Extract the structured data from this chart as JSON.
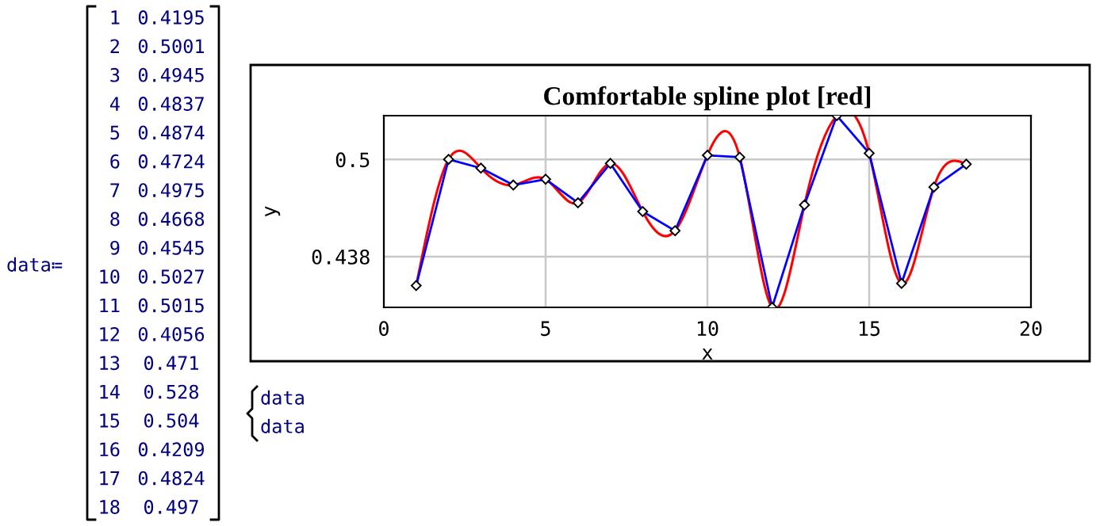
{
  "chart_data": {
    "type": "line",
    "title": "Comfortable spline plot [red]",
    "xlabel": "x",
    "ylabel": "y",
    "x": [
      1,
      2,
      3,
      4,
      5,
      6,
      7,
      8,
      9,
      10,
      11,
      12,
      13,
      14,
      15,
      16,
      17,
      18
    ],
    "series": [
      {
        "color": "#0000ff",
        "marker": "diamond",
        "values": [
          0.4195,
          0.5001,
          0.4945,
          0.4837,
          0.4874,
          0.4724,
          0.4975,
          0.4668,
          0.4545,
          0.5027,
          0.5015,
          0.4056,
          0.471,
          0.528,
          0.504,
          0.4209,
          0.4824,
          0.497
        ]
      },
      {
        "color": "#ff0000",
        "marker": "none",
        "values": [
          0.4195,
          0.5001,
          0.4945,
          0.4837,
          0.4874,
          0.4724,
          0.4975,
          0.4668,
          0.4545,
          0.5027,
          0.5015,
          0.4056,
          0.471,
          0.528,
          0.504,
          0.4209,
          0.4824,
          0.497
        ]
      }
    ],
    "xlim": [
      0,
      20
    ],
    "xticks": [
      0,
      5,
      10,
      15,
      20
    ],
    "ylim": [
      0.4056,
      0.528
    ],
    "yticks": [
      0.438,
      0.5
    ],
    "grid": true,
    "annotations": [
      "data≔",
      "data",
      "data",
      "1",
      "0.4195",
      "2",
      "0.5001",
      "3",
      "0.4945",
      "4",
      "0.4837",
      "5",
      "0.4874",
      "6",
      "0.4724",
      "7",
      "0.4975",
      "8",
      "0.4668",
      "9",
      "0.4545",
      "10",
      "0.5027",
      "11",
      "0.5015",
      "12",
      "0.4056",
      "13",
      "0.471",
      "14",
      "0.528",
      "15",
      "0.504",
      "16",
      "0.4209",
      "17",
      "0.4824",
      "18",
      "0.497"
    ]
  }
}
